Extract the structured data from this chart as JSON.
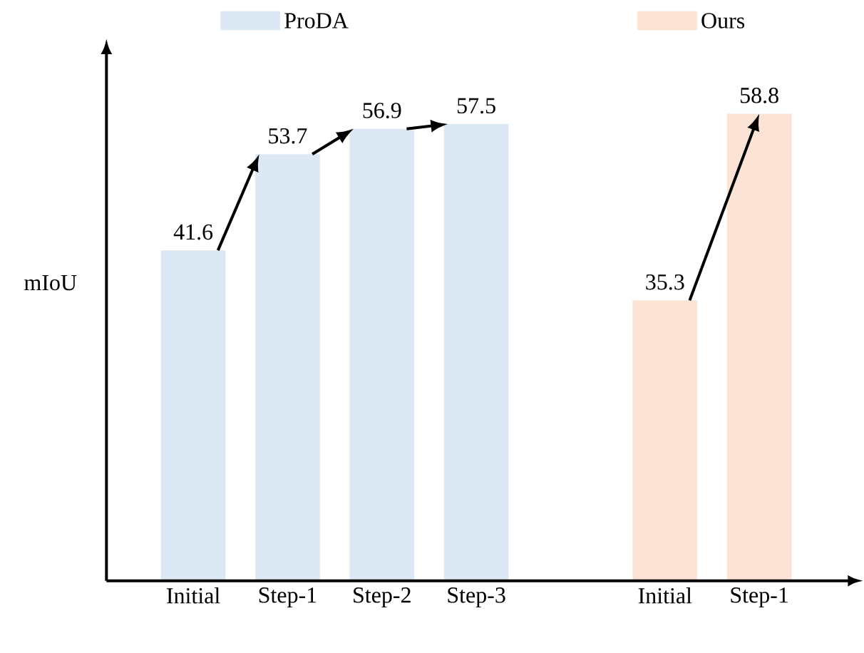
{
  "chart_data": {
    "type": "bar",
    "ylabel": "mIoU",
    "categories": [
      "Initial",
      "Step-1",
      "Step-2",
      "Step-3",
      null,
      "Initial",
      "Step-1"
    ],
    "series": [
      {
        "name": "ProDA",
        "color": "#dde8f5",
        "values": [
          41.6,
          53.7,
          56.9,
          57.5,
          null,
          null,
          null
        ]
      },
      {
        "name": "Ours",
        "color": "#fbe3d5",
        "values": [
          null,
          null,
          null,
          null,
          null,
          35.3,
          58.8
        ]
      }
    ],
    "data_labels": true,
    "legend": "top"
  }
}
